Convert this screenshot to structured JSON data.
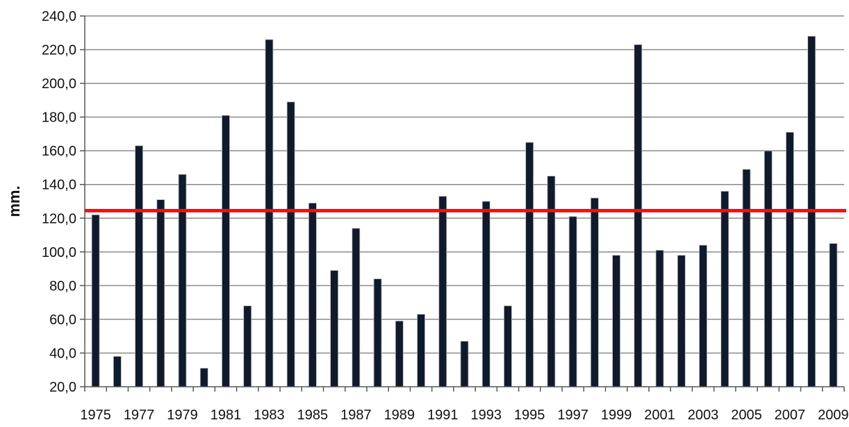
{
  "chart_data": {
    "type": "bar",
    "title": "",
    "xlabel": "",
    "ylabel": "mm.",
    "ylim": [
      20,
      240
    ],
    "y_ticks": [
      "20,0",
      "40,0",
      "60,0",
      "80,0",
      "100,0",
      "120,0",
      "140,0",
      "160,0",
      "180,0",
      "200,0",
      "220,0",
      "240,0"
    ],
    "x_tick_labels": [
      "1975",
      "1977",
      "1979",
      "1981",
      "1983",
      "1985",
      "1987",
      "1989",
      "1991",
      "1993",
      "1995",
      "1997",
      "1999",
      "2001",
      "2003",
      "2005",
      "2007",
      "2009"
    ],
    "categories": [
      "1975",
      "1976",
      "1977",
      "1978",
      "1979",
      "1980",
      "1981",
      "1982",
      "1983",
      "1984",
      "1985",
      "1986",
      "1987",
      "1988",
      "1989",
      "1990",
      "1991",
      "1992",
      "1993",
      "1994",
      "1995",
      "1996",
      "1997",
      "1998",
      "1999",
      "2000",
      "2001",
      "2002",
      "2003",
      "2004",
      "2005",
      "2006",
      "2007",
      "2008",
      "2009"
    ],
    "values": [
      122,
      38,
      163,
      131,
      146,
      31,
      181,
      68,
      226,
      189,
      129,
      89,
      114,
      84,
      59,
      63,
      133,
      47,
      130,
      68,
      165,
      145,
      121,
      132,
      98,
      223,
      101,
      98,
      104,
      136,
      149,
      160,
      171,
      228,
      105
    ],
    "reference_line": {
      "value": 124.5,
      "color": "#ee1111"
    },
    "bar_color": "#0f1a2a",
    "grid": true,
    "gridline_color": "#8a8a8a"
  }
}
